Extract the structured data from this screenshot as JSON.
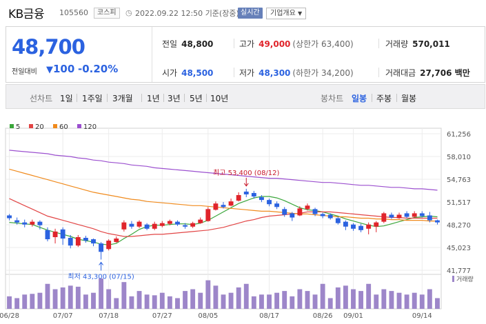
{
  "header": {
    "name": "KB금융",
    "code": "105560",
    "market_badge": "코스피",
    "timestamp": "2022.09.22 12:50",
    "basis": "기준(장중)",
    "realtime_label": "실시간",
    "company_info_label": "기업개요"
  },
  "summary": {
    "price": "48,700",
    "vs_label": "전일대비",
    "change": "100",
    "change_pct": "-0.20%",
    "prev_close_label": "전일",
    "prev_close": "48,800",
    "high_label": "고가",
    "high": "49,000",
    "upper_limit": "(상한가 63,400)",
    "volume_label": "거래량",
    "volume": "570,011",
    "open_label": "시가",
    "open": "48,500",
    "low_label": "저가",
    "low": "48,300",
    "lower_limit": "(하한가 34,200)",
    "amount_label": "거래대금",
    "amount": "27,706 백만"
  },
  "tabs": {
    "line_chart_label": "선차트",
    "periods": [
      "1일",
      "1주일",
      "3개월",
      "1년",
      "3년",
      "5년",
      "10년"
    ],
    "candle_chart_label": "봉차트",
    "candle_periods": [
      "일봉",
      "주봉",
      "월봉"
    ],
    "active_candle": "일봉"
  },
  "legend": {
    "ma": [
      {
        "label": "5",
        "color": "#3aa63a"
      },
      {
        "label": "20",
        "color": "#e24444"
      },
      {
        "label": "60",
        "color": "#f08a1c"
      },
      {
        "label": "120",
        "color": "#9b4fcf"
      }
    ],
    "volume_label": "거래량"
  },
  "chart_data": {
    "type": "candlestick",
    "y_ticks": [
      "61,256",
      "58,010",
      "54,763",
      "51,517",
      "48,270",
      "45,023",
      "41,777"
    ],
    "ylim": [
      41777,
      61256
    ],
    "x_ticks": [
      "06/28",
      "07/07",
      "07/18",
      "07/27",
      "08/05",
      "08/17",
      "08/26",
      "09/01",
      "09/14"
    ],
    "x_tick_index": [
      0,
      7,
      13,
      20,
      26,
      34,
      41,
      45,
      54
    ],
    "annotations": {
      "high": "최고 53,400 (08/12)",
      "high_value": 53400,
      "high_index": 31,
      "low": "최저 43,300 (07/15)",
      "low_value": 43300,
      "low_index": 12
    },
    "candles": [
      {
        "o": 49600,
        "c": 49200,
        "h": 49800,
        "l": 48900
      },
      {
        "o": 48900,
        "c": 48600,
        "h": 49300,
        "l": 48300
      },
      {
        "o": 48600,
        "c": 48300,
        "h": 49000,
        "l": 47900
      },
      {
        "o": 48300,
        "c": 48700,
        "h": 49000,
        "l": 48000
      },
      {
        "o": 48700,
        "c": 48200,
        "h": 48900,
        "l": 47600
      },
      {
        "o": 47500,
        "c": 46200,
        "h": 47900,
        "l": 45900
      },
      {
        "o": 46500,
        "c": 47300,
        "h": 47700,
        "l": 45600
      },
      {
        "o": 47600,
        "c": 46300,
        "h": 47900,
        "l": 45400
      },
      {
        "o": 46400,
        "c": 45300,
        "h": 46800,
        "l": 44900
      },
      {
        "o": 45300,
        "c": 46500,
        "h": 46800,
        "l": 45100
      },
      {
        "o": 46400,
        "c": 46000,
        "h": 46700,
        "l": 45700
      },
      {
        "o": 46200,
        "c": 45600,
        "h": 46300,
        "l": 45200
      },
      {
        "o": 45600,
        "c": 44400,
        "h": 45800,
        "l": 43300
      },
      {
        "o": 44800,
        "c": 46000,
        "h": 46200,
        "l": 44600
      },
      {
        "o": 45800,
        "c": 46300,
        "h": 46600,
        "l": 45700
      },
      {
        "o": 47600,
        "c": 48600,
        "h": 48900,
        "l": 47300
      },
      {
        "o": 48400,
        "c": 48000,
        "h": 48800,
        "l": 47700
      },
      {
        "o": 48000,
        "c": 48700,
        "h": 48900,
        "l": 47800
      },
      {
        "o": 48300,
        "c": 47700,
        "h": 48500,
        "l": 47500
      },
      {
        "o": 47700,
        "c": 48400,
        "h": 48700,
        "l": 47500
      },
      {
        "o": 48100,
        "c": 48500,
        "h": 48800,
        "l": 47900
      },
      {
        "o": 48400,
        "c": 48800,
        "h": 49000,
        "l": 48200
      },
      {
        "o": 48700,
        "c": 48300,
        "h": 48900,
        "l": 48100
      },
      {
        "o": 48200,
        "c": 48000,
        "h": 48500,
        "l": 47700
      },
      {
        "o": 48000,
        "c": 48500,
        "h": 48700,
        "l": 47800
      },
      {
        "o": 48500,
        "c": 49000,
        "h": 49300,
        "l": 48400
      },
      {
        "o": 48800,
        "c": 50500,
        "h": 50800,
        "l": 48700
      },
      {
        "o": 50400,
        "c": 51300,
        "h": 51600,
        "l": 50300
      },
      {
        "o": 51100,
        "c": 50800,
        "h": 51500,
        "l": 50600
      },
      {
        "o": 51000,
        "c": 51600,
        "h": 52000,
        "l": 50900
      },
      {
        "o": 51700,
        "c": 52500,
        "h": 52900,
        "l": 51600
      },
      {
        "o": 53000,
        "c": 52600,
        "h": 53400,
        "l": 52200
      },
      {
        "o": 52800,
        "c": 52300,
        "h": 53100,
        "l": 52000
      },
      {
        "o": 52200,
        "c": 51800,
        "h": 52500,
        "l": 51500
      },
      {
        "o": 51800,
        "c": 51200,
        "h": 52000,
        "l": 50900
      },
      {
        "o": 51300,
        "c": 50800,
        "h": 51600,
        "l": 50500
      },
      {
        "o": 50500,
        "c": 49700,
        "h": 50800,
        "l": 49400
      },
      {
        "o": 49900,
        "c": 49300,
        "h": 50100,
        "l": 48800
      },
      {
        "o": 49600,
        "c": 50600,
        "h": 50900,
        "l": 49500
      },
      {
        "o": 50500,
        "c": 51000,
        "h": 51300,
        "l": 50300
      },
      {
        "o": 50500,
        "c": 49800,
        "h": 50700,
        "l": 49500
      },
      {
        "o": 49800,
        "c": 49500,
        "h": 50000,
        "l": 49200
      },
      {
        "o": 49700,
        "c": 49200,
        "h": 49900,
        "l": 49000
      },
      {
        "o": 49200,
        "c": 48500,
        "h": 49400,
        "l": 48300
      },
      {
        "o": 48700,
        "c": 48000,
        "h": 48900,
        "l": 47500
      },
      {
        "o": 48300,
        "c": 47700,
        "h": 48500,
        "l": 47400
      },
      {
        "o": 48100,
        "c": 47500,
        "h": 48400,
        "l": 47200
      },
      {
        "o": 47700,
        "c": 48300,
        "h": 48600,
        "l": 46900
      },
      {
        "o": 48000,
        "c": 48600,
        "h": 48800,
        "l": 47200
      },
      {
        "o": 48700,
        "c": 49900,
        "h": 50100,
        "l": 48500
      },
      {
        "o": 49700,
        "c": 49300,
        "h": 50000,
        "l": 49100
      },
      {
        "o": 49200,
        "c": 49700,
        "h": 50000,
        "l": 49100
      },
      {
        "o": 49900,
        "c": 49400,
        "h": 50200,
        "l": 49200
      },
      {
        "o": 49400,
        "c": 49900,
        "h": 50200,
        "l": 49300
      },
      {
        "o": 49900,
        "c": 49500,
        "h": 50200,
        "l": 49300
      },
      {
        "o": 49600,
        "c": 48900,
        "h": 50100,
        "l": 48600
      },
      {
        "o": 48900,
        "c": 48600,
        "h": 49000,
        "l": 48300
      }
    ],
    "ma_series": {
      "ma5": [
        48600,
        48500,
        48400,
        48300,
        47900,
        47500,
        47200,
        46900,
        46600,
        46200,
        46000,
        45800,
        45500,
        45400,
        45600,
        46300,
        46900,
        47600,
        48000,
        48200,
        48200,
        48300,
        48400,
        48400,
        48300,
        48500,
        48900,
        49500,
        50100,
        50700,
        51300,
        51700,
        52100,
        52300,
        52300,
        52100,
        51700,
        51200,
        50700,
        50400,
        50300,
        50100,
        49800,
        49500,
        49100,
        48800,
        48500,
        48200,
        48000,
        48100,
        48400,
        48700,
        49000,
        49300,
        49400,
        49500,
        49400
      ],
      "ma20": [
        52000,
        51500,
        51000,
        50500,
        50000,
        49500,
        49200,
        48900,
        48600,
        48300,
        48000,
        47700,
        47300,
        47000,
        46800,
        46600,
        46600,
        46700,
        46800,
        46900,
        46900,
        47000,
        47100,
        47200,
        47300,
        47400,
        47500,
        47700,
        47900,
        48200,
        48500,
        48800,
        49000,
        49300,
        49500,
        49600,
        49700,
        49800,
        49900,
        50100,
        50100,
        50100,
        50100,
        50000,
        49900,
        49800,
        49700,
        49600,
        49500,
        49400,
        49300,
        49300,
        49200,
        49200,
        49200,
        49200,
        49200
      ],
      "ma60": [
        56200,
        55900,
        55600,
        55300,
        55000,
        54700,
        54400,
        54100,
        53800,
        53500,
        53200,
        52900,
        52700,
        52500,
        52300,
        52100,
        51900,
        51800,
        51600,
        51500,
        51400,
        51300,
        51200,
        51100,
        51000,
        51000,
        50900,
        50800,
        50700,
        50600,
        50500,
        50400,
        50300,
        50200,
        50200,
        50100,
        50000,
        49900,
        49800,
        49800,
        49700,
        49600,
        49500,
        49400,
        49400,
        49300,
        49200,
        49200,
        49100,
        49100,
        49000,
        49000,
        48900,
        48900,
        48900,
        48800,
        48800
      ],
      "ma120": [
        58900,
        58800,
        58700,
        58600,
        58500,
        58400,
        58200,
        58100,
        58000,
        57800,
        57700,
        57500,
        57400,
        57200,
        57100,
        57000,
        56800,
        56700,
        56600,
        56400,
        56300,
        56200,
        56100,
        56000,
        55900,
        55800,
        55700,
        55600,
        55500,
        55400,
        55300,
        55200,
        55100,
        55000,
        54900,
        54900,
        54800,
        54700,
        54600,
        54500,
        54400,
        54300,
        54300,
        54200,
        54100,
        54000,
        53900,
        53900,
        53800,
        53700,
        53600,
        53600,
        53500,
        53400,
        53400,
        53300,
        53200
      ]
    },
    "volume": [
      35,
      30,
      40,
      42,
      45,
      70,
      55,
      60,
      65,
      62,
      40,
      45,
      85,
      55,
      30,
      75,
      35,
      50,
      40,
      38,
      45,
      35,
      30,
      50,
      55,
      45,
      80,
      65,
      40,
      45,
      60,
      70,
      35,
      40,
      40,
      45,
      50,
      35,
      55,
      50,
      40,
      70,
      30,
      60,
      65,
      55,
      50,
      70,
      40,
      55,
      50,
      45,
      40,
      45,
      40,
      55,
      30
    ]
  }
}
